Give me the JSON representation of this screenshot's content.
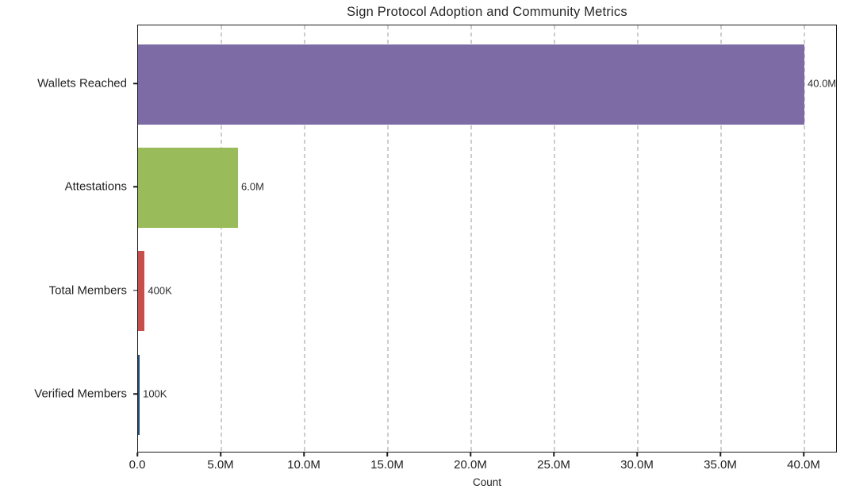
{
  "chart_data": {
    "type": "bar",
    "orientation": "horizontal",
    "title": "Sign Protocol Adoption and Community Metrics",
    "xlabel": "Count",
    "categories": [
      "Wallets Reached",
      "Attestations",
      "Total Members",
      "Verified Members"
    ],
    "values": [
      40000000,
      6000000,
      400000,
      100000
    ],
    "value_labels": [
      "40.0M",
      "6.0M",
      "400K",
      "100K"
    ],
    "bar_colors": [
      "#7d6ba5",
      "#9abb59",
      "#c5504b",
      "#27496d"
    ],
    "xlim": [
      0,
      42000000
    ],
    "x_tick_values": [
      0,
      5000000,
      10000000,
      15000000,
      20000000,
      25000000,
      30000000,
      35000000,
      40000000
    ],
    "x_tick_labels": [
      "0.0",
      "5.0M",
      "10.0M",
      "15.0M",
      "20.0M",
      "25.0M",
      "30.0M",
      "35.0M",
      "40.0M"
    ],
    "grid": "vertical-dashed",
    "legend": "none",
    "colors": {
      "spine": "#1c1c1c",
      "gridline": "#cdcdcd",
      "text": "#1f1f1f",
      "background": "#ffffff"
    }
  }
}
